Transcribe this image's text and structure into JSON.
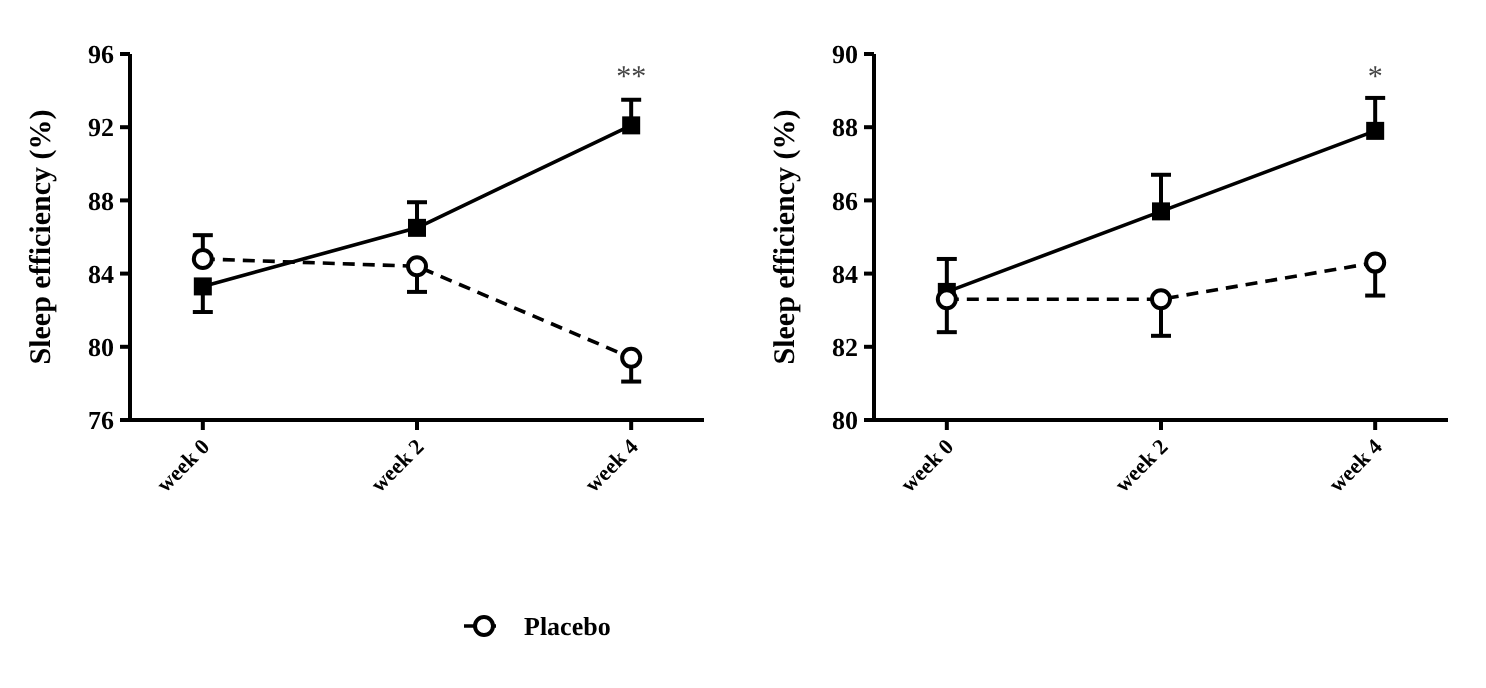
{
  "chart_data": [
    {
      "type": "line",
      "ylabel": "Sleep efficiency (%)",
      "categories": [
        "week 0",
        "week 2",
        "week 4"
      ],
      "ylim": [
        76,
        96
      ],
      "yticks": [
        76,
        80,
        84,
        88,
        92,
        96
      ],
      "grid": false,
      "legend": "bottom",
      "annotations": [
        "**"
      ],
      "series": [
        {
          "name": "Placebo",
          "color": "#000000",
          "values": [
            84.8,
            84.4,
            79.4
          ],
          "errors": [
            [
              84.8,
              86.1
            ],
            [
              83.0,
              84.4
            ],
            [
              78.1,
              79.4
            ]
          ],
          "marker": "circle",
          "line_style": "dashed"
        },
        {
          "color": "#000000",
          "values": [
            83.3,
            86.5,
            92.1
          ],
          "errors": [
            [
              81.9,
              83.3
            ],
            [
              86.5,
              87.9
            ],
            [
              92.1,
              93.5
            ]
          ],
          "marker": "square",
          "line_style": "solid"
        }
      ]
    },
    {
      "type": "line",
      "ylabel": "Sleep efficiency (%)",
      "categories": [
        "week 0",
        "week 2",
        "week 4"
      ],
      "ylim": [
        80,
        90
      ],
      "yticks": [
        80,
        82,
        84,
        86,
        88,
        90
      ],
      "grid": false,
      "legend": false,
      "annotations": [
        "*"
      ],
      "series": [
        {
          "color": "#000000",
          "values": [
            83.3,
            83.3,
            84.3
          ],
          "errors": [
            [
              82.4,
              83.3
            ],
            [
              82.3,
              83.3
            ],
            [
              83.4,
              84.3
            ]
          ],
          "marker": "circle",
          "line_style": "dashed"
        },
        {
          "color": "#000000",
          "values": [
            83.5,
            85.7,
            87.9
          ],
          "errors": [
            [
              83.5,
              84.4
            ],
            [
              85.7,
              86.7
            ],
            [
              87.9,
              88.8
            ]
          ],
          "marker": "square",
          "line_style": "solid"
        }
      ]
    }
  ]
}
